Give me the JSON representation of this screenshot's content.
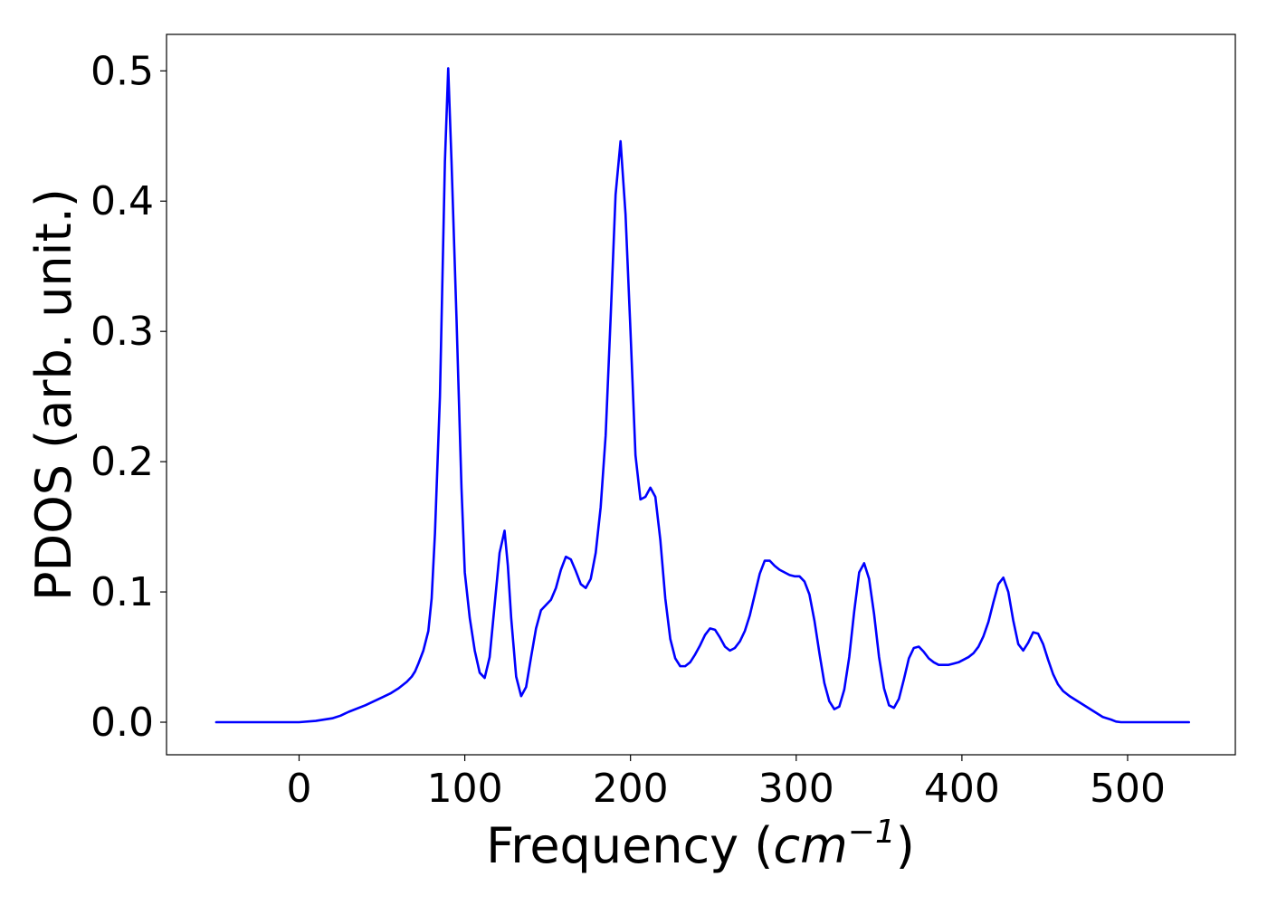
{
  "chart_data": {
    "type": "line",
    "xlabel": "Frequency",
    "xlabel_unit_base": "cm",
    "xlabel_unit_exp": "−1",
    "ylabel": "PDOS (arb. unit.)",
    "xlim": [
      -80,
      565
    ],
    "ylim": [
      -0.025,
      0.528
    ],
    "x_ticks": [
      0,
      100,
      200,
      300,
      400,
      500
    ],
    "x_tick_labels": [
      "0",
      "100",
      "200",
      "300",
      "400",
      "500"
    ],
    "y_ticks": [
      0.0,
      0.1,
      0.2,
      0.3,
      0.4,
      0.5
    ],
    "y_tick_labels": [
      "0.0",
      "0.1",
      "0.2",
      "0.3",
      "0.4",
      "0.5"
    ],
    "grid": false,
    "series": [
      {
        "color": "#0000ff",
        "x": [
          -50,
          -30,
          -10,
          0,
          10,
          20,
          25,
          30,
          40,
          50,
          55,
          60,
          65,
          68,
          70,
          72,
          75,
          78,
          80,
          82,
          85,
          88,
          90,
          92,
          95,
          98,
          100,
          103,
          106,
          109,
          112,
          115,
          118,
          121,
          124,
          126,
          128,
          131,
          134,
          137,
          140,
          143,
          146,
          149,
          152,
          155,
          158,
          161,
          164,
          167,
          170,
          173,
          176,
          179,
          182,
          185,
          188,
          191,
          194,
          197,
          200,
          203,
          206,
          209,
          212,
          215,
          218,
          221,
          224,
          227,
          230,
          233,
          236,
          239,
          242,
          245,
          248,
          251,
          254,
          257,
          260,
          263,
          266,
          269,
          272,
          275,
          278,
          281,
          284,
          287,
          290,
          293,
          296,
          299,
          302,
          305,
          308,
          311,
          314,
          317,
          320,
          323,
          326,
          329,
          332,
          335,
          338,
          341,
          344,
          347,
          350,
          353,
          356,
          359,
          362,
          365,
          368,
          371,
          374,
          377,
          380,
          383,
          386,
          389,
          392,
          395,
          398,
          401,
          404,
          407,
          410,
          413,
          416,
          419,
          422,
          425,
          428,
          431,
          434,
          437,
          440,
          443,
          446,
          449,
          452,
          455,
          458,
          461,
          465,
          470,
          475,
          480,
          485,
          490,
          493,
          496,
          500,
          510,
          520,
          530,
          537
        ],
        "y": [
          0.0,
          0.0,
          0.0,
          0.0,
          0.001,
          0.003,
          0.005,
          0.008,
          0.013,
          0.019,
          0.022,
          0.026,
          0.031,
          0.035,
          0.039,
          0.045,
          0.055,
          0.07,
          0.095,
          0.145,
          0.25,
          0.43,
          0.502,
          0.43,
          0.31,
          0.18,
          0.115,
          0.08,
          0.055,
          0.038,
          0.034,
          0.05,
          0.09,
          0.13,
          0.147,
          0.12,
          0.08,
          0.035,
          0.02,
          0.027,
          0.05,
          0.072,
          0.086,
          0.09,
          0.094,
          0.103,
          0.117,
          0.127,
          0.125,
          0.116,
          0.106,
          0.103,
          0.11,
          0.13,
          0.165,
          0.22,
          0.31,
          0.405,
          0.446,
          0.39,
          0.3,
          0.205,
          0.171,
          0.173,
          0.18,
          0.173,
          0.14,
          0.095,
          0.064,
          0.049,
          0.043,
          0.043,
          0.046,
          0.052,
          0.059,
          0.067,
          0.072,
          0.071,
          0.065,
          0.058,
          0.055,
          0.057,
          0.062,
          0.07,
          0.082,
          0.098,
          0.114,
          0.124,
          0.124,
          0.12,
          0.117,
          0.115,
          0.113,
          0.112,
          0.112,
          0.108,
          0.098,
          0.078,
          0.053,
          0.03,
          0.016,
          0.01,
          0.012,
          0.025,
          0.05,
          0.085,
          0.115,
          0.122,
          0.11,
          0.083,
          0.05,
          0.026,
          0.013,
          0.011,
          0.018,
          0.033,
          0.049,
          0.057,
          0.058,
          0.054,
          0.049,
          0.046,
          0.044,
          0.044,
          0.044,
          0.045,
          0.046,
          0.048,
          0.05,
          0.053,
          0.058,
          0.066,
          0.077,
          0.092,
          0.106,
          0.111,
          0.1,
          0.078,
          0.06,
          0.055,
          0.061,
          0.069,
          0.068,
          0.06,
          0.048,
          0.037,
          0.029,
          0.024,
          0.02,
          0.016,
          0.012,
          0.008,
          0.004,
          0.002,
          0.0005,
          0.0,
          0.0,
          0.0,
          0.0,
          0.0,
          0.0
        ]
      }
    ]
  }
}
